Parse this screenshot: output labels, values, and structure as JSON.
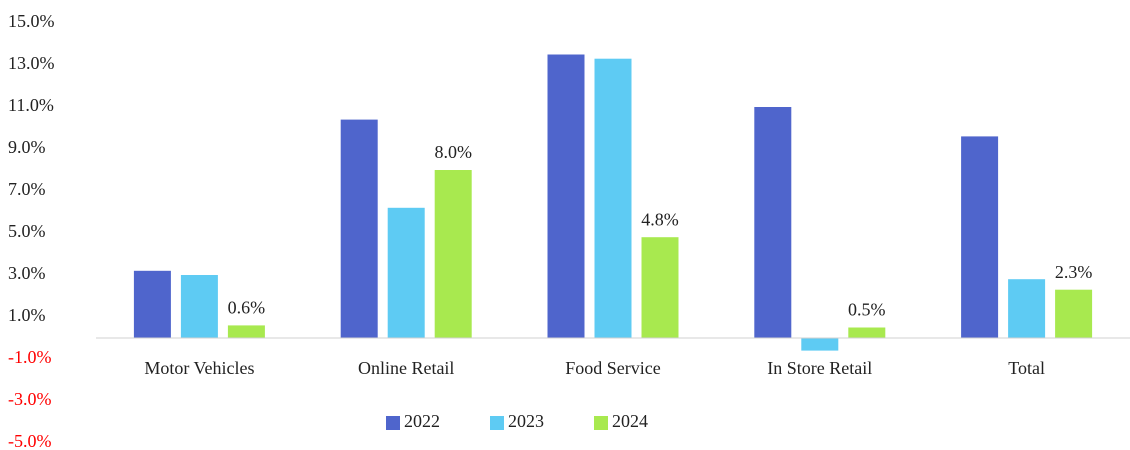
{
  "chart_data": {
    "type": "bar",
    "categories": [
      "Motor Vehicles",
      "Online Retail",
      "Food Service",
      "In Store Retail",
      "Total"
    ],
    "series": [
      {
        "name": "2022",
        "color": "#4f65cc",
        "values": [
          3.2,
          10.4,
          13.5,
          11.0,
          9.6
        ]
      },
      {
        "name": "2023",
        "color": "#5ecbf3",
        "values": [
          3.0,
          6.2,
          13.3,
          -0.6,
          2.8
        ]
      },
      {
        "name": "2024",
        "color": "#a8e94f",
        "values": [
          0.6,
          8.0,
          4.8,
          0.5,
          2.3
        ],
        "value_labels": [
          "0.6%",
          "8.0%",
          "4.8%",
          "0.5%",
          "2.3%"
        ]
      }
    ],
    "ylim": [
      -5,
      15
    ],
    "yticks": [
      {
        "value": -5,
        "label": "-5.0%"
      },
      {
        "value": -3,
        "label": "-3.0%"
      },
      {
        "value": -1,
        "label": "-1.0%"
      },
      {
        "value": 1,
        "label": "1.0%"
      },
      {
        "value": 3,
        "label": "3.0%"
      },
      {
        "value": 5,
        "label": "5.0%"
      },
      {
        "value": 7,
        "label": "7.0%"
      },
      {
        "value": 9,
        "label": "9.0%"
      },
      {
        "value": 11,
        "label": "11.0%"
      },
      {
        "value": 13,
        "label": "13.0%"
      },
      {
        "value": 15,
        "label": "15.0%"
      }
    ],
    "negative_tick_color": "#ff0000",
    "grid": false,
    "legend": "bottom"
  }
}
